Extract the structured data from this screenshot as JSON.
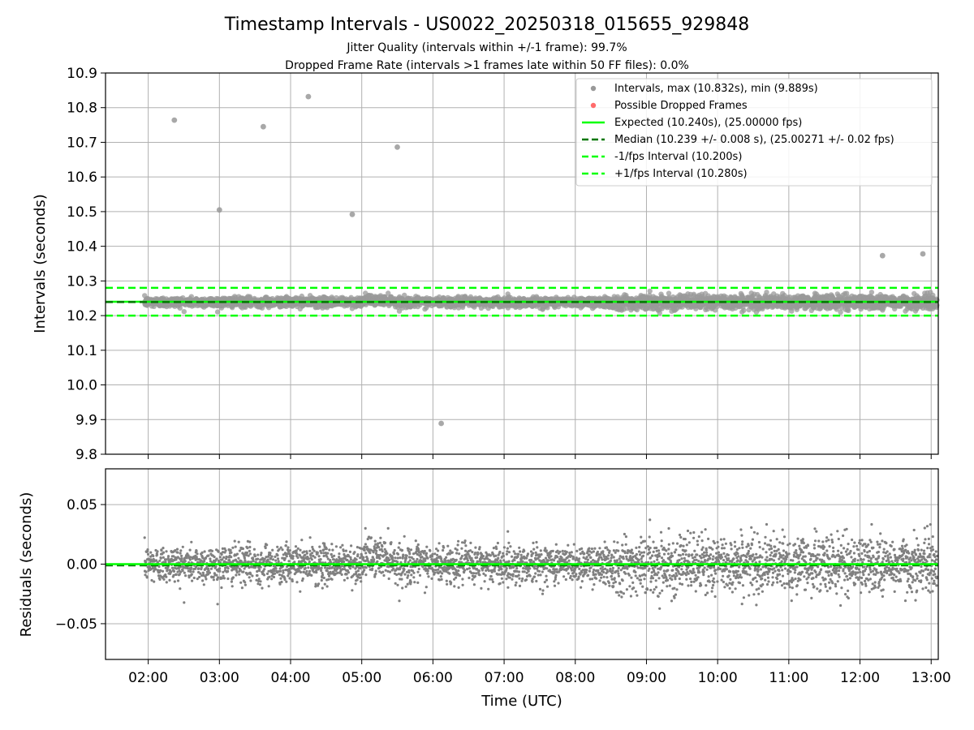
{
  "figure": {
    "title": "Timestamp Intervals - US0022_20250318_015655_929848",
    "subtitle_1": "Jitter Quality (intervals within +/-1 frame): 99.7%",
    "subtitle_2": "Dropped Frame Rate (intervals >1 frames late within 50 FF files): 0.0%"
  },
  "colors": {
    "intervals_points": "#999999",
    "residual_points": "#808080",
    "dropped_frames": "#ff6b6b",
    "expected": "#00ff00",
    "median": "#007700",
    "fps_bounds": "#00ff00",
    "grid": "#b0b0b0"
  },
  "chart_data": [
    {
      "type": "scatter",
      "panel": "top",
      "xlabel": "",
      "ylabel": "Intervals (seconds)",
      "xlim": [
        1.4,
        13.1
      ],
      "ylim": [
        9.8,
        10.9
      ],
      "yticks": [
        "9.8",
        "9.9",
        "10.0",
        "10.1",
        "10.2",
        "10.3",
        "10.4",
        "10.5",
        "10.6",
        "10.7",
        "10.8",
        "10.9"
      ],
      "grid": true,
      "legend_placement": "top-right",
      "legend": [
        {
          "label": "Intervals, max (10.832s), min (9.889s)",
          "marker": "dot",
          "color": "#999999"
        },
        {
          "label": "Possible Dropped Frames",
          "marker": "dot",
          "color": "#ff6b6b"
        },
        {
          "label": "Expected (10.240s), (25.00000 fps)",
          "marker": "solid",
          "color": "#00ff00"
        },
        {
          "label": "Median (10.239 +/- 0.008 s), (25.00271 +/- 0.02 fps)",
          "marker": "dashed",
          "color": "#007700"
        },
        {
          "label": "-1/fps Interval (10.200s)",
          "marker": "dashed",
          "color": "#00ff00"
        },
        {
          "label": "+1/fps Interval (10.280s)",
          "marker": "dashed",
          "color": "#00ff00"
        }
      ],
      "reference_lines": {
        "expected": 10.24,
        "median": 10.239,
        "minus_one_fps": 10.2,
        "plus_one_fps": 10.28
      },
      "outliers": [
        {
          "x": "02:22",
          "y": 10.764
        },
        {
          "x": "03:00",
          "y": 10.505
        },
        {
          "x": "03:37",
          "y": 10.745
        },
        {
          "x": "04:15",
          "y": 10.832
        },
        {
          "x": "04:52",
          "y": 10.492
        },
        {
          "x": "05:30",
          "y": 10.686
        },
        {
          "x": "06:07",
          "y": 9.889
        },
        {
          "x": "12:19",
          "y": 10.373
        },
        {
          "x": "12:53",
          "y": 10.378
        }
      ],
      "bulk_series": {
        "x_range": [
          "01:57",
          "13:05"
        ],
        "center": 10.239,
        "spread": 0.008,
        "approx_count": 3900
      }
    },
    {
      "type": "scatter",
      "panel": "bottom",
      "xlabel": "Time (UTC)",
      "ylabel": "Residuals (seconds)",
      "xlim": [
        1.4,
        13.1
      ],
      "ylim": [
        -0.08,
        0.08
      ],
      "xticks": [
        "02:00",
        "03:00",
        "04:00",
        "05:00",
        "06:00",
        "07:00",
        "08:00",
        "09:00",
        "10:00",
        "11:00",
        "12:00",
        "13:00"
      ],
      "yticks": [
        "0.05",
        "0.00",
        "−0.05"
      ],
      "grid": true,
      "reference_lines": {
        "expected": 0.0,
        "median": -0.001
      },
      "series": {
        "x_range": [
          "01:57",
          "13:05"
        ],
        "center": 0.0,
        "spread": 0.008,
        "approx_count": 3900
      }
    }
  ]
}
